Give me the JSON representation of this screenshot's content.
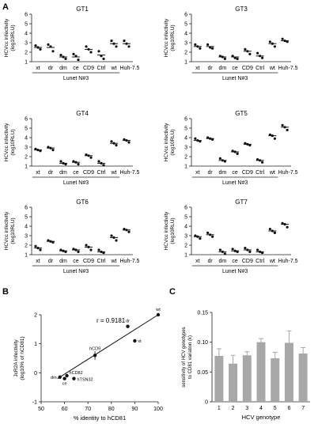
{
  "panel_letters": {
    "a": "A",
    "b": "B",
    "c": "C"
  },
  "chart_data": [
    {
      "type": "scatter",
      "panel": "A",
      "title": "GT1",
      "ylabel_line1": "HCVcc infectivity",
      "ylabel_line2": "(log10RLU)",
      "ylim": [
        1,
        6
      ],
      "yticks": [
        "1",
        "2",
        "3",
        "4",
        "5",
        "6"
      ],
      "categories": [
        "xt",
        "dr",
        "dm",
        "ce",
        "CD9",
        "Ctrl",
        "wt",
        "Huh-7.5"
      ],
      "group_label": "Lunet N#3",
      "points": [
        [
          2.7,
          2.3,
          2.5
        ],
        [
          2.8,
          2.1,
          2.6
        ],
        [
          1.7,
          1.3,
          1.5
        ],
        [
          1.8,
          1.2,
          1.6
        ],
        [
          2.6,
          2.0,
          2.3
        ],
        [
          2.1,
          1.3,
          1.6
        ],
        [
          3.2,
          2.6,
          2.9
        ],
        [
          3.2,
          2.6,
          2.9
        ]
      ],
      "means": [
        2.5,
        2.5,
        1.5,
        1.5,
        2.3,
        1.7,
        2.9,
        2.9
      ]
    },
    {
      "type": "scatter",
      "panel": "A",
      "title": "GT3",
      "ylabel_line1": "HCVcc infectivity",
      "ylabel_line2": "(log10RLU)",
      "ylim": [
        1,
        6
      ],
      "yticks": [
        "1",
        "2",
        "3",
        "4",
        "5",
        "6"
      ],
      "categories": [
        "xt",
        "dr",
        "dm",
        "ce",
        "CD9",
        "Ctrl",
        "wt",
        "Huh-7.5"
      ],
      "group_label": "Lunet N#3",
      "points": [
        [
          2.8,
          2.4,
          2.6
        ],
        [
          2.8,
          2.4,
          2.5
        ],
        [
          1.6,
          1.3,
          1.5
        ],
        [
          1.6,
          1.3,
          1.4
        ],
        [
          2.3,
          1.8,
          2.1
        ],
        [
          1.9,
          1.4,
          1.6
        ],
        [
          3.1,
          2.6,
          2.9
        ],
        [
          3.4,
          3.1,
          3.2
        ]
      ],
      "means": [
        2.6,
        2.6,
        1.5,
        1.5,
        2.1,
        1.6,
        2.9,
        3.2
      ]
    },
    {
      "type": "scatter",
      "panel": "A",
      "title": "GT4",
      "ylabel_line1": "HCVcc infectivity",
      "ylabel_line2": "(log10RLU)",
      "ylim": [
        1,
        6
      ],
      "yticks": [
        "1",
        "2",
        "3",
        "4",
        "5",
        "6"
      ],
      "categories": [
        "xt",
        "dr",
        "dm",
        "ce",
        "CD9",
        "Ctrl",
        "wt",
        "Huh-7.5"
      ],
      "group_label": "Lunet N#3",
      "points": [
        [
          2.8,
          2.6,
          2.7
        ],
        [
          3.0,
          2.7,
          2.9
        ],
        [
          1.5,
          1.2,
          1.3
        ],
        [
          1.5,
          1.2,
          1.4
        ],
        [
          2.2,
          1.9,
          2.1
        ],
        [
          1.5,
          1.1,
          1.3
        ],
        [
          3.6,
          3.2,
          3.4
        ],
        [
          3.8,
          3.5,
          3.7
        ]
      ],
      "means": [
        2.7,
        2.9,
        1.3,
        1.4,
        2.1,
        1.3,
        3.4,
        3.7
      ]
    },
    {
      "type": "scatter",
      "panel": "A",
      "title": "GT5",
      "ylabel_line1": "HCVcc infectivity",
      "ylabel_line2": "(log10RLU)",
      "ylim": [
        1,
        6
      ],
      "yticks": [
        "1",
        "2",
        "3",
        "4",
        "5",
        "6"
      ],
      "categories": [
        "xt",
        "dr",
        "dm",
        "ce",
        "CD9",
        "Ctrl",
        "wt",
        "Huh-7.5"
      ],
      "group_label": "Lunet N#3",
      "points": [
        [
          3.9,
          3.6,
          3.7
        ],
        [
          4.0,
          3.8,
          3.9
        ],
        [
          1.8,
          1.5,
          1.6
        ],
        [
          2.6,
          2.3,
          2.5
        ],
        [
          3.4,
          3.2,
          3.3
        ],
        [
          1.7,
          1.4,
          1.6
        ],
        [
          4.3,
          3.9,
          4.2
        ],
        [
          5.3,
          4.8,
          5.1
        ]
      ],
      "means": [
        3.7,
        3.9,
        1.6,
        2.5,
        3.3,
        1.6,
        4.2,
        5.1
      ]
    },
    {
      "type": "scatter",
      "panel": "A",
      "title": "GT6",
      "ylabel_line1": "HCVcc infectivity",
      "ylabel_line2": "(log10RLU)",
      "ylim": [
        1,
        6
      ],
      "yticks": [
        "1",
        "2",
        "3",
        "4",
        "5",
        "6"
      ],
      "categories": [
        "xt",
        "dr",
        "dm",
        "ce",
        "CD9",
        "Ctrl",
        "wt",
        "Huh-7.5"
      ],
      "group_label": "Lunet N#3",
      "points": [
        [
          1.9,
          1.5,
          1.7
        ],
        [
          2.5,
          2.3,
          2.4
        ],
        [
          1.5,
          1.3,
          1.4
        ],
        [
          1.6,
          1.3,
          1.5
        ],
        [
          2.0,
          1.5,
          1.8
        ],
        [
          1.5,
          1.2,
          1.3
        ],
        [
          3.0,
          2.5,
          2.8
        ],
        [
          3.7,
          3.4,
          3.6
        ]
      ],
      "means": [
        1.7,
        2.4,
        1.4,
        1.5,
        1.8,
        1.3,
        2.8,
        3.6
      ]
    },
    {
      "type": "scatter",
      "panel": "A",
      "title": "GT7",
      "ylabel_line1": "HCVcc infectivity",
      "ylabel_line2": "(log10RLU)",
      "ylim": [
        1,
        6
      ],
      "yticks": [
        "1",
        "2",
        "3",
        "4",
        "5",
        "6"
      ],
      "categories": [
        "xt",
        "dr",
        "dm",
        "ce",
        "CD9",
        "Ctrl",
        "wt",
        "Huh-7.5"
      ],
      "group_label": "Lunet N#3",
      "points": [
        [
          3.0,
          2.7,
          2.9
        ],
        [
          3.3,
          2.9,
          3.1
        ],
        [
          1.5,
          1.1,
          1.3
        ],
        [
          1.6,
          1.3,
          1.4
        ],
        [
          1.7,
          1.3,
          1.5
        ],
        [
          1.5,
          1.2,
          1.3
        ],
        [
          3.7,
          3.3,
          3.5
        ],
        [
          4.3,
          3.9,
          4.2
        ]
      ],
      "means": [
        2.9,
        3.1,
        1.3,
        1.4,
        1.5,
        1.3,
        3.5,
        4.2
      ]
    },
    {
      "type": "scatter",
      "panel": "B",
      "annotation": "r = 0.9181",
      "xlabel": "% identity to hCD81",
      "ylabel_line1": "JcR2A infectivity",
      "ylabel_line2": "(log10% of hCD81)",
      "xlim": [
        50,
        100
      ],
      "ylim": [
        -1,
        2
      ],
      "xticks": [
        "50",
        "60",
        "70",
        "80",
        "90",
        "100"
      ],
      "yticks": [
        "-1",
        "0",
        "1",
        "2"
      ],
      "points": [
        {
          "label": "dm",
          "x": 58,
          "y": -0.15
        },
        {
          "label": "ce",
          "x": 60,
          "y": -0.2
        },
        {
          "label": "hCD82",
          "x": 61,
          "y": -0.1
        },
        {
          "label": "hTSN32",
          "x": 64,
          "y": -0.2
        },
        {
          "label": "hCD9",
          "x": 73,
          "y": 0.6,
          "yerr": 0.15
        },
        {
          "label": "dr",
          "x": 87,
          "y": 1.6
        },
        {
          "label": "xt",
          "x": 90,
          "y": 1.1
        },
        {
          "label": "wt",
          "x": 100,
          "y": 2.0
        }
      ],
      "fit_line": {
        "x": [
          57,
          100
        ],
        "y": [
          -0.2,
          2.0
        ]
      }
    },
    {
      "type": "bar",
      "panel": "C",
      "xlabel": "HCV genotype",
      "ylabel_line1": "sensitivity of HCV genotypes",
      "ylabel_line2": "to CD81 variation (k)",
      "categories": [
        "1",
        "2",
        "3",
        "4",
        "5",
        "6",
        "7"
      ],
      "values": [
        0.077,
        0.064,
        0.078,
        0.1,
        0.073,
        0.099,
        0.081
      ],
      "errors": [
        0.012,
        0.014,
        0.006,
        0.006,
        0.01,
        0.02,
        0.01
      ],
      "ylim": [
        0,
        0.15
      ],
      "yticks": [
        "0",
        "0.05",
        "0.10",
        "0.15"
      ],
      "bar_color": "#a8a8a8"
    }
  ]
}
